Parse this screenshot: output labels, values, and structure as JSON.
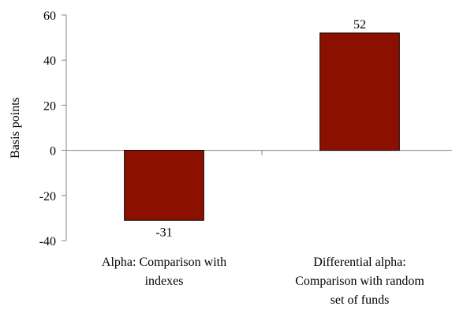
{
  "chart_data": {
    "type": "bar",
    "title": "",
    "xlabel": "",
    "ylabel": "Basis points",
    "ylim": [
      -40,
      60
    ],
    "yticks": [
      -40,
      -20,
      0,
      20,
      40,
      60
    ],
    "grid": false,
    "categories": [
      [
        "Alpha: Comparison with",
        "indexes"
      ],
      [
        "Differential alpha:",
        "Comparison with random",
        "set of funds"
      ]
    ],
    "series": [
      {
        "values": [
          -31,
          52
        ],
        "labels": [
          "-31",
          "52"
        ],
        "color": "#8b1000"
      }
    ]
  }
}
